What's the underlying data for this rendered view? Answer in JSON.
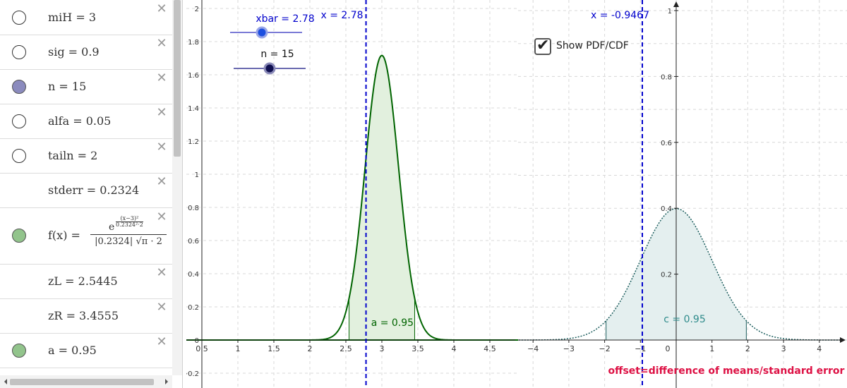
{
  "algebra": {
    "rows": [
      {
        "label": "miH = 3",
        "dot": "empty"
      },
      {
        "label": "sig = 0.9",
        "dot": "empty"
      },
      {
        "label": "n = 15",
        "dot": "blue"
      },
      {
        "label": "alfa = 0.05",
        "dot": "empty"
      },
      {
        "label": "tailn = 2",
        "dot": "empty"
      },
      {
        "label": "stderr = 0.2324",
        "dot": "none"
      },
      {
        "label": "f(x) =",
        "dot": "green",
        "formula_top_exp": "(x−3)²",
        "formula_top_den": "0.2324²·2",
        "formula_e": "e",
        "formula_bottom": "|0.2324| √π · 2"
      },
      {
        "label": "zL = 2.5445",
        "dot": "none"
      },
      {
        "label": "zR = 3.4555",
        "dot": "none"
      },
      {
        "label": "a = 0.95",
        "dot": "green"
      }
    ],
    "delete_icon": "close-icon"
  },
  "left_graph": {
    "slider_xbar_label": "xbar = 2.78",
    "slider_xbar_value": 2.78,
    "slider_n_label": "n = 15",
    "slider_n_value": 15,
    "line_label": "x = 2.78",
    "area_label": "a = 0.95",
    "x_ticks": [
      "0.5",
      "1",
      "1.5",
      "2",
      "2.5",
      "3",
      "3.5",
      "4",
      "4.5"
    ],
    "y_ticks": [
      "−0.2",
      "0",
      "0.2",
      "0.4",
      "0.6",
      "0.8",
      "1",
      "1.2",
      "1.4",
      "1.6",
      "1.8",
      "2"
    ],
    "curve_color": "#006400",
    "line_color": "#0000cc",
    "mean": 3,
    "sd": 0.2324,
    "zL": 2.5445,
    "zR": 3.4555,
    "xbar": 2.78
  },
  "right_graph": {
    "line_label": "x = -0.9467",
    "area_label": "c = 0.95",
    "footer_text": "offset=difference of means/standard error",
    "checkbox_label": "Show PDF/CDF",
    "checkbox_checked": true,
    "x_ticks": [
      "−4",
      "−3",
      "−2",
      "−1",
      "0",
      "1",
      "2",
      "3",
      "4"
    ],
    "y_ticks": [
      "0.2",
      "0.4",
      "0.6",
      "0.8",
      "1"
    ],
    "curve_color": "#1a5c5c",
    "footer_color": "#dd1144",
    "offset": -0.9467
  }
}
